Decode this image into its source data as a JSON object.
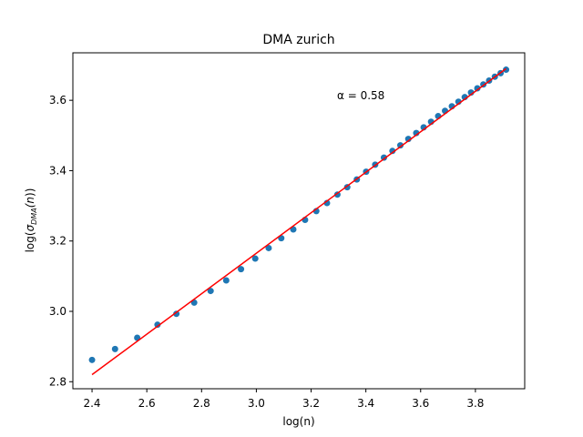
{
  "chart_data": {
    "type": "scatter",
    "title": "DMA zurich",
    "xlabel": "log(n)",
    "ylabel": {
      "prefix": "log(",
      "sigma": "σ",
      "subscript": "DMA",
      "suffix": "(n))"
    },
    "xlim": [
      2.33,
      3.98
    ],
    "ylim": [
      2.78,
      3.735
    ],
    "grid": false,
    "legend": "none",
    "annotation": "α = 0.58",
    "xticks": [
      2.4,
      2.6,
      2.8,
      3.0,
      3.2,
      3.4,
      3.6,
      3.8
    ],
    "xtick_labels": [
      "2.4",
      "2.6",
      "2.8",
      "3.0",
      "3.2",
      "3.4",
      "3.6",
      "3.8"
    ],
    "yticks": [
      2.8,
      3.0,
      3.2,
      3.4,
      3.6
    ],
    "ytick_labels": [
      "2.8",
      "3.0",
      "3.2",
      "3.4",
      "3.6"
    ],
    "series": [
      {
        "kind": "scatter",
        "color": "#1f77b4",
        "points": [
          [
            2.4,
            2.862
          ],
          [
            2.484,
            2.893
          ],
          [
            2.565,
            2.925
          ],
          [
            2.639,
            2.962
          ],
          [
            2.708,
            2.993
          ],
          [
            2.773,
            3.025
          ],
          [
            2.833,
            3.058
          ],
          [
            2.89,
            3.088
          ],
          [
            2.944,
            3.12
          ],
          [
            2.996,
            3.15
          ],
          [
            3.045,
            3.18
          ],
          [
            3.091,
            3.208
          ],
          [
            3.135,
            3.233
          ],
          [
            3.178,
            3.26
          ],
          [
            3.219,
            3.285
          ],
          [
            3.258,
            3.308
          ],
          [
            3.296,
            3.332
          ],
          [
            3.332,
            3.353
          ],
          [
            3.367,
            3.375
          ],
          [
            3.401,
            3.397
          ],
          [
            3.434,
            3.417
          ],
          [
            3.466,
            3.437
          ],
          [
            3.497,
            3.456
          ],
          [
            3.526,
            3.472
          ],
          [
            3.555,
            3.49
          ],
          [
            3.584,
            3.507
          ],
          [
            3.611,
            3.523
          ],
          [
            3.638,
            3.539
          ],
          [
            3.664,
            3.555
          ],
          [
            3.689,
            3.57
          ],
          [
            3.714,
            3.583
          ],
          [
            3.738,
            3.596
          ],
          [
            3.761,
            3.609
          ],
          [
            3.784,
            3.622
          ],
          [
            3.807,
            3.634
          ],
          [
            3.829,
            3.645
          ],
          [
            3.85,
            3.656
          ],
          [
            3.871,
            3.667
          ],
          [
            3.892,
            3.677
          ],
          [
            3.912,
            3.687
          ]
        ]
      },
      {
        "kind": "line",
        "color": "#ff0000",
        "points": [
          [
            2.4,
            2.82
          ],
          [
            3.912,
            3.69
          ]
        ]
      }
    ],
    "colors": {
      "scatter": "#1f77b4",
      "fit_line": "#ff0000",
      "axes": "#000000"
    }
  }
}
